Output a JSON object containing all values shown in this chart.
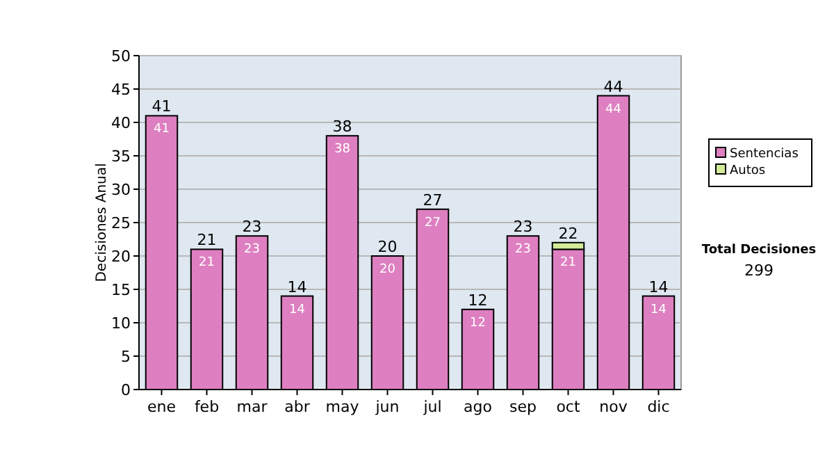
{
  "chart_data": {
    "type": "bar",
    "stacked": true,
    "ylabel": "Decisiones Anual",
    "categories": [
      "ene",
      "feb",
      "mar",
      "abr",
      "may",
      "jun",
      "jul",
      "ago",
      "sep",
      "oct",
      "nov",
      "dic"
    ],
    "series": [
      {
        "name": "Sentencias",
        "color": "#dd7fc0",
        "values": [
          41,
          21,
          23,
          14,
          38,
          20,
          27,
          12,
          23,
          21,
          44,
          14
        ],
        "value_labels": [
          "41",
          "21",
          "23",
          "14",
          "38",
          "20",
          "27",
          "12",
          "23",
          "21",
          "44",
          "14"
        ]
      },
      {
        "name": "Autos",
        "color": "#d4eb9a",
        "values": [
          null,
          null,
          null,
          null,
          null,
          null,
          null,
          null,
          null,
          1,
          null,
          null
        ]
      }
    ],
    "totals": [
      "41",
      "21",
      "23",
      "14",
      "38",
      "20",
      "27",
      "12",
      "23",
      "22",
      "44",
      "14"
    ],
    "ylim": [
      0,
      50
    ],
    "yticks": [
      0,
      5,
      10,
      15,
      20,
      25,
      30,
      35,
      40,
      45,
      50
    ],
    "grid": "y",
    "legend": "right",
    "annotations": [
      "Total Decisiones",
      "299"
    ]
  }
}
